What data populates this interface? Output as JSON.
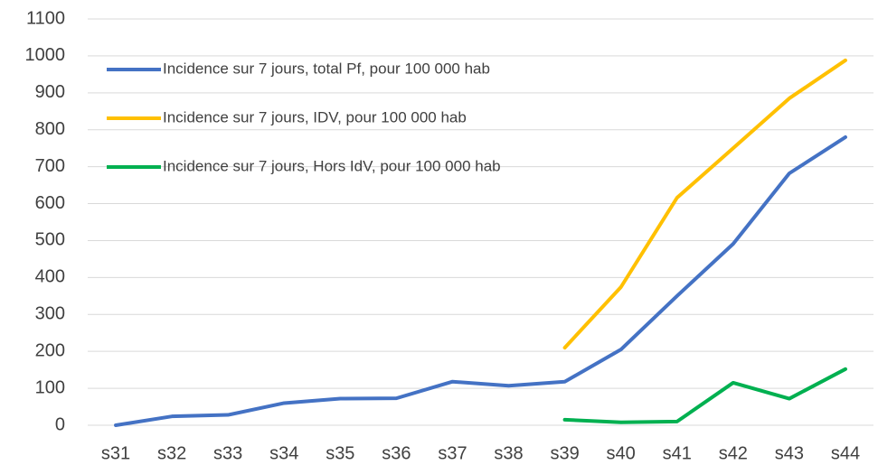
{
  "chart_data": {
    "type": "line",
    "categories": [
      "s31",
      "s32",
      "s33",
      "s34",
      "s35",
      "s36",
      "s37",
      "s38",
      "s39",
      "s40",
      "s41",
      "s42",
      "s43",
      "s44"
    ],
    "series": [
      {
        "name": "Incidence sur 7 jours, total Pf, pour 100 000 hab",
        "color": "#4472c4",
        "values": [
          0,
          24,
          28,
          60,
          72,
          73,
          118,
          107,
          118,
          205,
          350,
          491,
          682,
          780
        ]
      },
      {
        "name": "Incidence sur 7 jours, IDV, pour 100 000 hab",
        "color": "#ffc000",
        "values": [
          null,
          null,
          null,
          null,
          null,
          null,
          null,
          null,
          210,
          374,
          616,
          750,
          885,
          988
        ]
      },
      {
        "name": "Incidence sur 7 jours, Hors IdV, pour 100 000 hab",
        "color": "#00b050",
        "values": [
          null,
          null,
          null,
          null,
          null,
          null,
          null,
          null,
          15,
          8,
          10,
          115,
          72,
          152
        ]
      }
    ],
    "ylim": [
      0,
      1100
    ],
    "yticks": [
      0,
      100,
      200,
      300,
      400,
      500,
      600,
      700,
      800,
      900,
      1000,
      1100
    ],
    "grid": true,
    "legend": "top-left"
  }
}
